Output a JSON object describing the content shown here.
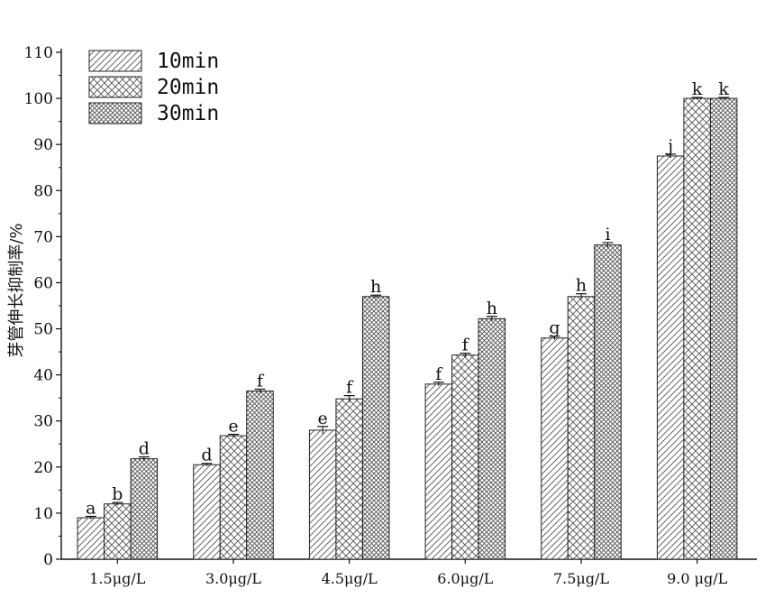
{
  "chart_data": {
    "type": "bar",
    "title": "",
    "xlabel": "",
    "ylabel": "芽管伸长抑制率/%",
    "ylim": [
      0,
      110
    ],
    "yticks": [
      0,
      10,
      20,
      30,
      40,
      50,
      60,
      70,
      80,
      90,
      100,
      110
    ],
    "grid": false,
    "legend_position": "top-left",
    "categories": [
      "1.5μg/L",
      "3.0μg/L",
      "4.5μg/L",
      "6.0μg/L",
      "7.5μg/L",
      "9.0 μg/L"
    ],
    "series": [
      {
        "name": "10min",
        "pattern": "diagonal-hatch",
        "values": [
          9,
          20.5,
          28,
          38,
          48,
          87.5
        ],
        "errors": [
          0.3,
          0.3,
          0.8,
          0.4,
          0.4,
          0.4
        ],
        "labels": [
          "a",
          "d",
          "e",
          "f",
          "g",
          "j"
        ]
      },
      {
        "name": "20min",
        "pattern": "cross-hatch",
        "values": [
          12,
          26.8,
          34.8,
          44.3,
          57,
          100
        ],
        "errors": [
          0.3,
          0.3,
          0.7,
          0.4,
          0.6,
          0.2
        ],
        "labels": [
          "b",
          "e",
          "f",
          "f",
          "h",
          "k"
        ]
      },
      {
        "name": "30min",
        "pattern": "dense-cross-hatch",
        "values": [
          21.8,
          36.5,
          57,
          52.2,
          68.2,
          100
        ],
        "errors": [
          0.4,
          0.4,
          0.3,
          0.5,
          0.5,
          0.2
        ],
        "labels": [
          "d",
          "f",
          "h",
          "h",
          "i",
          "k"
        ]
      }
    ]
  }
}
